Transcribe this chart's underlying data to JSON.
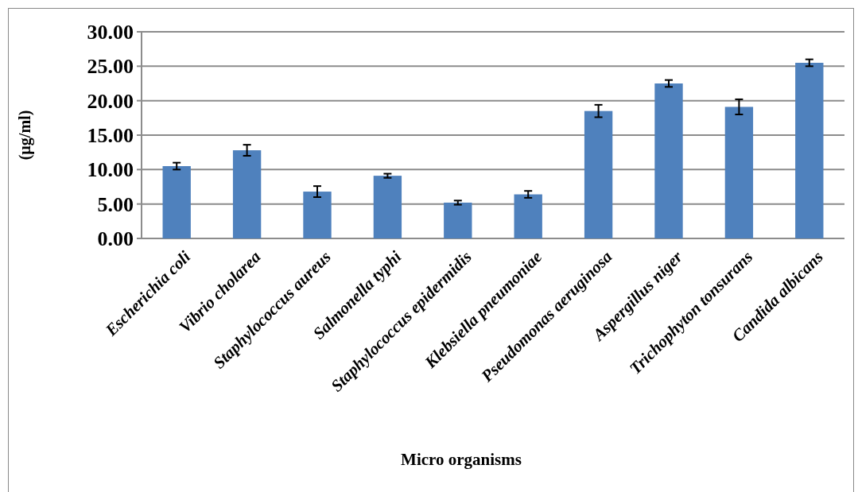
{
  "chart_data": {
    "type": "bar",
    "xlabel": "Micro organisms",
    "ylabel": "(µg/ml)",
    "categories": [
      "Escherichia coli",
      "Vibrio cholarea",
      "Staphylococcus aureus",
      "Salmonella typhi",
      "Staphylococcus epidermidis",
      "Klebsiella pneumoniae",
      "Pseudomonas aeruginosa",
      "Aspergillus niger",
      "Trichophyton tonsurans",
      "Candida albicans"
    ],
    "values": [
      10.5,
      12.8,
      6.8,
      9.1,
      5.2,
      6.4,
      18.5,
      22.5,
      19.1,
      25.5
    ],
    "errors": [
      0.5,
      0.8,
      0.8,
      0.3,
      0.3,
      0.5,
      0.9,
      0.5,
      1.1,
      0.5
    ],
    "color": "#4f81bd",
    "ylim": [
      0,
      30
    ],
    "yticks": [
      {
        "value": 0,
        "label": "0.00"
      },
      {
        "value": 5,
        "label": "5.00"
      },
      {
        "value": 10,
        "label": "10.00"
      },
      {
        "value": 15,
        "label": "15.00"
      },
      {
        "value": 20,
        "label": "20.00"
      },
      {
        "value": 25,
        "label": "25.00"
      },
      {
        "value": 30,
        "label": "30.00"
      }
    ],
    "grid": "y"
  }
}
